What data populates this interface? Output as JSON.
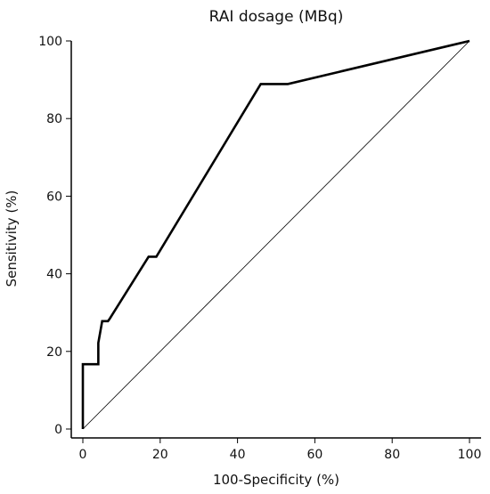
{
  "chart_data": {
    "type": "line",
    "title": "RAI dosage (MBq)",
    "xlabel": "100-Specificity  (%)",
    "ylabel": "Sensitivity  (%)",
    "xlim": [
      0,
      100
    ],
    "ylim": [
      0,
      100
    ],
    "xticks": [
      "0",
      "20",
      "40",
      "60",
      "80",
      "100"
    ],
    "yticks": [
      "0",
      "20",
      "40",
      "60",
      "80",
      "100"
    ],
    "grid": false,
    "legend": "none",
    "series": [
      {
        "style": "thick-solid",
        "color": "#000000",
        "x": [
          0,
          0,
          4,
          4,
          5,
          6,
          6.5,
          7,
          17,
          17.5,
          19,
          46,
          53,
          100
        ],
        "y": [
          0,
          16.7,
          16.7,
          22.2,
          27.8,
          27.8,
          27.8,
          28.5,
          44.4,
          44.4,
          44.4,
          88.9,
          88.9,
          100
        ]
      },
      {
        "style": "diagonal-reference",
        "color": "#000000",
        "x": [
          0,
          100
        ],
        "y": [
          0,
          100
        ]
      }
    ]
  }
}
